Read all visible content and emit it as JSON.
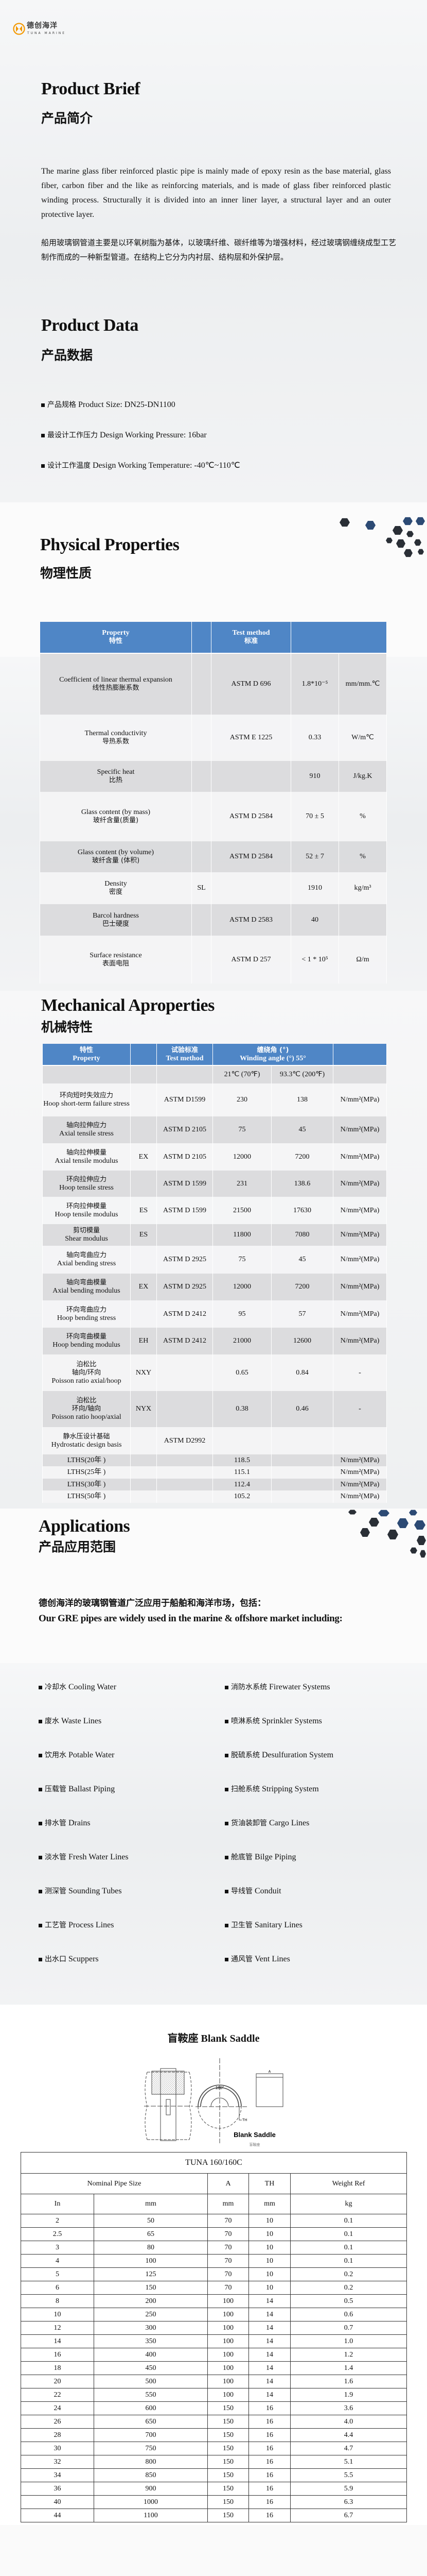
{
  "brand": {
    "name_cn": "德创海洋",
    "name_en": "TUNA MARINE",
    "color": "#F39800"
  },
  "brief": {
    "title_en": "Product Brief",
    "title_cn": "产品简介",
    "text_en": "The marine glass fiber reinforced plastic pipe is mainly made of epoxy resin as the base material, glass fiber, carbon fiber and the like as reinforcing materials, and is made of glass fiber reinforced plastic winding process. Structurally it is divided into an inner liner layer, a structural layer and an outer protective layer.",
    "text_cn": "船用玻璃钢管道主要是以环氧树脂为基体，以玻璃纤维、碳纤维等为增强材料，经过玻璃钢缠绕成型工艺制作而成的一种新型管道。在结构上它分为内衬层、结构层和外保护层。"
  },
  "product_data": {
    "title_en": "Product Data",
    "title_cn": "产品数据",
    "items": [
      {
        "cn": "产品规格",
        "en": "Product Size: DN25-DN1100"
      },
      {
        "cn": "最设计工作压力",
        "en": "Design Working Pressure: 16bar"
      },
      {
        "cn": "设计工作温度",
        "en": "Design Working Temperature: -40℃~110℃"
      }
    ]
  },
  "physical": {
    "title_en": "Physical Properties",
    "title_cn": "物理性质",
    "header": {
      "property_en": "Property",
      "property_cn": "特性",
      "method_en": "Test method",
      "method_cn": "标准"
    },
    "rows": [
      {
        "en": "Coefficient of linear thermal expansion",
        "cn": "线性热膨胀系数",
        "sym": "",
        "method": "ASTM D  696",
        "value": "1.8*10⁻⁵",
        "unit": "mm/mm.℃"
      },
      {
        "en": "Thermal conductivity",
        "cn": "导热系数",
        "sym": "",
        "method": "ASTM E 1225",
        "value": "0.33",
        "unit": "W/m℃"
      },
      {
        "en": "Specific heat",
        "cn": "比热",
        "sym": "",
        "method": "",
        "value": "910",
        "unit": "J/kg.K"
      },
      {
        "en": "Glass content (by mass)",
        "cn": "玻纤含量(质量)",
        "sym": "",
        "method": "ASTM D 2584",
        "value": "70 ± 5",
        "unit": "%"
      },
      {
        "en": "Glass content (by volume)",
        "cn": "玻纤含量 (体积)",
        "sym": "",
        "method": "ASTM D 2584",
        "value": "52 ± 7",
        "unit": "%"
      },
      {
        "en": "Density",
        "cn": "密度",
        "sym": "SL",
        "method": "",
        "value": "1910",
        "unit": "kg/m³"
      },
      {
        "en": "Barcol hardness",
        "cn": "巴士硬度",
        "sym": "",
        "method": "ASTM D 2583",
        "value": "40",
        "unit": ""
      },
      {
        "en": "Surface resistance",
        "cn": "表面电阻",
        "sym": "",
        "method": "ASTM D  257",
        "value": "< 1 * 10⁵",
        "unit": "Ω/m"
      }
    ]
  },
  "mechanical": {
    "title_en": "Mechanical Aproperties",
    "title_cn": "机械特性",
    "header": {
      "property_cn": "特性",
      "property_en": "Property",
      "method_cn": "试验标准",
      "method_en": "Test method",
      "angle_cn": "缠绕角 (°)",
      "angle_en": "Winding angle (°)  55°",
      "temp1": "21℃ (70℉)",
      "temp2": "93.3℃ (200℉)"
    },
    "rows": [
      {
        "cn": "环向短时失效应力",
        "en": "Hoop short-term failure stress",
        "sym": "",
        "method": "ASTM D1599",
        "v1": "230",
        "v2": "138",
        "unit": "N/mm²(MPa)"
      },
      {
        "cn": "轴向拉伸应力",
        "en": "Axial tensile stress",
        "sym": "",
        "method": "ASTM D 2105",
        "v1": "75",
        "v2": "45",
        "unit": "N/mm²(MPa)"
      },
      {
        "cn": "轴向拉伸模量",
        "en": "Axial tensile modulus",
        "sym": "EX",
        "method": "ASTM D 2105",
        "v1": "12000",
        "v2": "7200",
        "unit": "N/mm²(MPa)"
      },
      {
        "cn": "环向拉伸应力",
        "en": "Hoop tensile stress",
        "sym": "",
        "method": "ASTM D 1599",
        "v1": "231",
        "v2": "138.6",
        "unit": "N/mm²(MPa)"
      },
      {
        "cn": "环向拉伸模量",
        "en": "Hoop tensile modulus",
        "sym": "ES",
        "method": "ASTM D 1599",
        "v1": "21500",
        "v2": "17630",
        "unit": "N/mm²(MPa)"
      },
      {
        "cn": "剪切模量",
        "en": "Shear modulus",
        "sym": "ES",
        "method": "",
        "v1": "11800",
        "v2": "7080",
        "unit": "N/mm²(MPa)"
      },
      {
        "cn": "轴向弯曲应力",
        "en": "Axial bending stress",
        "sym": "",
        "method": "ASTM D 2925",
        "v1": "75",
        "v2": "45",
        "unit": "N/mm²(MPa)"
      },
      {
        "cn": "轴向弯曲模量",
        "en": "Axial bending modulus",
        "sym": "EX",
        "method": "ASTM D 2925",
        "v1": "12000",
        "v2": "7200",
        "unit": "N/mm²(MPa)"
      },
      {
        "cn": "环向弯曲应力",
        "en": "Hoop bending stress",
        "sym": "",
        "method": "ASTM D 2412",
        "v1": "95",
        "v2": "57",
        "unit": "N/mm²(MPa)"
      },
      {
        "cn": "环向弯曲模量",
        "en": "Hoop bending modulus",
        "sym": "EH",
        "method": "ASTM D 2412",
        "v1": "21000",
        "v2": "12600",
        "unit": "N/mm²(MPa)"
      },
      {
        "cn": "泊松比\n轴向/环向",
        "en": "Poisson ratio axial/hoop",
        "sym": "NXY",
        "method": "",
        "v1": "0.65",
        "v2": "0.84",
        "unit": "-"
      },
      {
        "cn": "泊松比\n环向/轴向",
        "en": "Poisson ratio hoop/axial",
        "sym": "NYX",
        "method": "",
        "v1": "0.38",
        "v2": "0.46",
        "unit": "-"
      },
      {
        "cn": "静水压设计基础",
        "en": "Hydrostatic design basis",
        "sym": "",
        "method": "ASTM D2992",
        "v1": "",
        "v2": "",
        "unit": ""
      },
      {
        "cn": "",
        "en": "LTHS(20年 )",
        "sym": "",
        "method": "",
        "v1": "118.5",
        "v2": "",
        "unit": "N/mm²(MPa)"
      },
      {
        "cn": "",
        "en": "LTHS(25年 )",
        "sym": "",
        "method": "",
        "v1": "115.1",
        "v2": "",
        "unit": "N/mm²(MPa)"
      },
      {
        "cn": "",
        "en": "LTHS(30年 )",
        "sym": "",
        "method": "",
        "v1": "112.4",
        "v2": "",
        "unit": "N/mm²(MPa)"
      },
      {
        "cn": "",
        "en": "LTHS(50年 )",
        "sym": "",
        "method": "",
        "v1": "105.2",
        "v2": "",
        "unit": "N/mm²(MPa)"
      }
    ]
  },
  "applications": {
    "title_en": "Applications",
    "title_cn": "产品应用范围",
    "intro_cn": "德创海洋的玻璃钢管道广泛应用于船舶和海洋市场，包括：",
    "intro_en": "Our GRE pipes are widely used in the marine & offshore market including:",
    "left": [
      {
        "cn": "冷却水",
        "en": "Cooling Water"
      },
      {
        "cn": "废水",
        "en": "Waste Lines"
      },
      {
        "cn": "饮用水",
        "en": "Potable Water"
      },
      {
        "cn": "压载管",
        "en": "Ballast Piping"
      },
      {
        "cn": "排水管",
        "en": "Drains"
      },
      {
        "cn": "淡水管",
        "en": "Fresh Water Lines"
      },
      {
        "cn": "测深管",
        "en": "Sounding Tubes"
      },
      {
        "cn": "工艺管",
        "en": "Process Lines"
      },
      {
        "cn": "出水口",
        "en": "Scuppers"
      }
    ],
    "right": [
      {
        "cn": "消防水系统",
        "en": "Firewater Systems"
      },
      {
        "cn": "喷淋系统",
        "en": "Sprinkler Systems"
      },
      {
        "cn": "脱硫系统",
        "en": "Desulfuration System"
      },
      {
        "cn": "扫舱系统",
        "en": "Stripping System"
      },
      {
        "cn": "货油装卸管",
        "en": "Cargo Lines"
      },
      {
        "cn": "舱底管",
        "en": "Bilge Piping"
      },
      {
        "cn": "导线管",
        "en": "Conduit"
      },
      {
        "cn": "卫生管",
        "en": "Sanitary Lines"
      },
      {
        "cn": "通风管",
        "en": "Vent Lines"
      }
    ]
  },
  "saddle": {
    "title": "盲鞍座 Blank Saddle",
    "drawing": {
      "label_en": "Blank Saddle",
      "label_cn": "盲鞍座",
      "angle": "180°",
      "th": "TH",
      "a": "A"
    },
    "model": "TUNA 160/160C",
    "headers": [
      "Nominal Pipe Size",
      "A",
      "TH",
      "Weight Ref"
    ],
    "units": [
      "In",
      "mm",
      "mm",
      "mm",
      "kg"
    ],
    "rows": [
      [
        "2",
        "50",
        "70",
        "10",
        "0.1"
      ],
      [
        "2.5",
        "65",
        "70",
        "10",
        "0.1"
      ],
      [
        "3",
        "80",
        "70",
        "10",
        "0.1"
      ],
      [
        "4",
        "100",
        "70",
        "10",
        "0.1"
      ],
      [
        "5",
        "125",
        "70",
        "10",
        "0.2"
      ],
      [
        "6",
        "150",
        "70",
        "10",
        "0.2"
      ],
      [
        "8",
        "200",
        "100",
        "14",
        "0.5"
      ],
      [
        "10",
        "250",
        "100",
        "14",
        "0.6"
      ],
      [
        "12",
        "300",
        "100",
        "14",
        "0.7"
      ],
      [
        "14",
        "350",
        "100",
        "14",
        "1.0"
      ],
      [
        "16",
        "400",
        "100",
        "14",
        "1.2"
      ],
      [
        "18",
        "450",
        "100",
        "14",
        "1.4"
      ],
      [
        "20",
        "500",
        "100",
        "14",
        "1.6"
      ],
      [
        "22",
        "550",
        "100",
        "14",
        "1.9"
      ],
      [
        "24",
        "600",
        "150",
        "16",
        "3.6"
      ],
      [
        "26",
        "650",
        "150",
        "16",
        "4.0"
      ],
      [
        "28",
        "700",
        "150",
        "16",
        "4.4"
      ],
      [
        "30",
        "750",
        "150",
        "16",
        "4.7"
      ],
      [
        "32",
        "800",
        "150",
        "16",
        "5.1"
      ],
      [
        "34",
        "850",
        "150",
        "16",
        "5.5"
      ],
      [
        "36",
        "900",
        "150",
        "16",
        "5.9"
      ],
      [
        "40",
        "1000",
        "150",
        "16",
        "6.3"
      ],
      [
        "44",
        "1100",
        "150",
        "16",
        "6.7"
      ]
    ]
  },
  "colors": {
    "header_blue": "#4F86C6",
    "row_gray": "#DADADC",
    "row_light": "#F4F4F5",
    "hexagon_dark": "#2A2F36",
    "hexagon_blue": "#2C4A74"
  }
}
